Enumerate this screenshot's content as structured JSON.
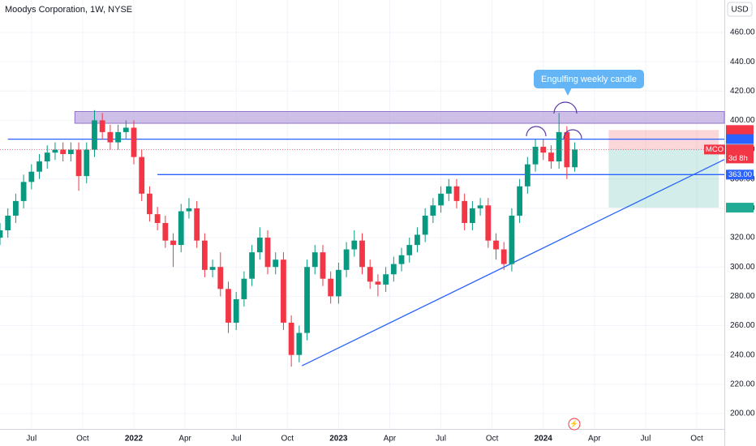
{
  "chart_data": {
    "type": "candlestick",
    "title": "Moodys Corporation, 1W, NYSE",
    "currency": "USD",
    "symbol": "MCO",
    "countdown": "3d 8h",
    "annotation": "Engulfing weekly candle",
    "up_color": "#089981",
    "down_color": "#f23645",
    "xlim": [
      0,
      184
    ],
    "ylim": [
      189.5,
      482.1
    ],
    "xticks": [
      {
        "value": 8,
        "label": "Jul"
      },
      {
        "value": 21,
        "label": "Oct"
      },
      {
        "value": 34,
        "label": "2022"
      },
      {
        "value": 47,
        "label": "Apr"
      },
      {
        "value": 60,
        "label": "Jul"
      },
      {
        "value": 73,
        "label": "Oct"
      },
      {
        "value": 86,
        "label": "2023"
      },
      {
        "value": 99,
        "label": "Apr"
      },
      {
        "value": 112,
        "label": "Jul"
      },
      {
        "value": 125,
        "label": "Oct"
      },
      {
        "value": 138,
        "label": "2024"
      },
      {
        "value": 151,
        "label": "Apr"
      },
      {
        "value": 164,
        "label": "Jul"
      },
      {
        "value": 177,
        "label": "Oct"
      }
    ],
    "yticks": [
      {
        "value": 200,
        "label": "200.00"
      },
      {
        "value": 220,
        "label": "220.00"
      },
      {
        "value": 240,
        "label": "240.00"
      },
      {
        "value": 260,
        "label": "260.00"
      },
      {
        "value": 280,
        "label": "280.00"
      },
      {
        "value": 300,
        "label": "300.00"
      },
      {
        "value": 320,
        "label": "320.00"
      },
      {
        "value": 340,
        "label": "340.00"
      },
      {
        "value": 360,
        "label": "360.00"
      },
      {
        "value": 380,
        "label": "380.00"
      },
      {
        "value": 400,
        "label": "400.00"
      },
      {
        "value": 420,
        "label": "420.00"
      },
      {
        "value": 440,
        "label": "440.00"
      },
      {
        "value": 460,
        "label": "460.00"
      }
    ],
    "x": [
      0,
      2,
      4,
      6,
      8,
      10,
      12,
      14,
      16,
      18,
      20,
      22,
      24,
      26,
      28,
      30,
      32,
      34,
      36,
      38,
      40,
      42,
      44,
      46,
      48,
      50,
      52,
      54,
      56,
      58,
      60,
      62,
      64,
      66,
      68,
      70,
      72,
      74,
      76,
      78,
      80,
      82,
      84,
      86,
      88,
      90,
      92,
      94,
      96,
      98,
      100,
      102,
      104,
      106,
      108,
      110,
      112,
      114,
      116,
      118,
      120,
      122,
      124,
      126,
      128,
      130,
      132,
      134,
      136,
      138,
      140,
      142,
      144,
      146
    ],
    "open": [
      320,
      325,
      335,
      345,
      358,
      365,
      372,
      378,
      380,
      377,
      380,
      362,
      380,
      400,
      392,
      385,
      392,
      395,
      375,
      350,
      336,
      330,
      318,
      315,
      338,
      340,
      318,
      298,
      300,
      285,
      262,
      278,
      292,
      310,
      320,
      300,
      305,
      262,
      240,
      255,
      300,
      310,
      292,
      280,
      298,
      312,
      318,
      300,
      290,
      288,
      295,
      302,
      308,
      315,
      322,
      335,
      342,
      350,
      355,
      345,
      330,
      340,
      342,
      318,
      312,
      302,
      335,
      355,
      370,
      382,
      378,
      372,
      392,
      368
    ],
    "high": [
      330,
      340,
      350,
      363,
      370,
      377,
      383,
      385,
      385,
      385,
      385,
      385,
      407,
      405,
      397,
      397,
      400,
      400,
      380,
      355,
      341,
      335,
      323,
      343,
      347,
      345,
      323,
      305,
      310,
      290,
      283,
      297,
      315,
      327,
      325,
      310,
      310,
      267,
      260,
      305,
      315,
      315,
      297,
      303,
      317,
      325,
      323,
      305,
      295,
      300,
      307,
      313,
      320,
      327,
      340,
      347,
      355,
      360,
      360,
      350,
      345,
      347,
      347,
      323,
      317,
      340,
      360,
      375,
      387,
      387,
      383,
      405,
      396,
      385
    ],
    "low": [
      315,
      320,
      330,
      340,
      353,
      360,
      367,
      373,
      372,
      372,
      352,
      357,
      375,
      387,
      380,
      380,
      387,
      370,
      345,
      331,
      325,
      313,
      300,
      310,
      333,
      313,
      293,
      293,
      280,
      255,
      257,
      273,
      287,
      305,
      295,
      295,
      257,
      232,
      235,
      250,
      295,
      287,
      275,
      275,
      293,
      307,
      295,
      285,
      280,
      283,
      290,
      297,
      303,
      310,
      317,
      330,
      337,
      345,
      340,
      325,
      325,
      335,
      313,
      305,
      298,
      297,
      330,
      350,
      365,
      373,
      367,
      367,
      360,
      365
    ],
    "close": [
      325,
      335,
      345,
      358,
      365,
      372,
      378,
      380,
      377,
      380,
      362,
      380,
      400,
      392,
      385,
      392,
      395,
      375,
      350,
      336,
      330,
      318,
      315,
      338,
      340,
      318,
      298,
      300,
      285,
      262,
      278,
      292,
      310,
      320,
      300,
      305,
      262,
      240,
      255,
      300,
      310,
      292,
      280,
      298,
      312,
      318,
      300,
      290,
      288,
      295,
      302,
      308,
      315,
      322,
      335,
      342,
      350,
      355,
      345,
      330,
      340,
      342,
      318,
      312,
      302,
      335,
      355,
      370,
      382,
      378,
      372,
      392,
      368,
      380.12
    ],
    "zone": {
      "from": 398,
      "to": 406,
      "start": 19,
      "color": "#b39ddb"
    },
    "levels": [
      {
        "value": 387.19,
        "start": 2,
        "color": "#2962ff"
      },
      {
        "value": 363,
        "start": 40,
        "color": "#2962ff"
      }
    ],
    "trendline": {
      "x": [
        76.7,
        184
      ],
      "y": [
        232.6,
        373.3
      ],
      "color": "#2962ff"
    },
    "position": {
      "entry": 380.27,
      "stop": 393.42,
      "target": 340.46,
      "start": 154.6,
      "end": 182.6
    },
    "price_labels": [
      {
        "value": 393.42,
        "color": "#f23645"
      },
      {
        "value": 387.19,
        "color": "#2962ff"
      },
      {
        "value": 380.27,
        "color": "#787b86"
      },
      {
        "value": 380.12,
        "color": "#f23645"
      },
      {
        "value": 363,
        "label": "363.00",
        "color": "#2962ff"
      },
      {
        "value": 340.46,
        "color": "#22ab94"
      }
    ]
  }
}
